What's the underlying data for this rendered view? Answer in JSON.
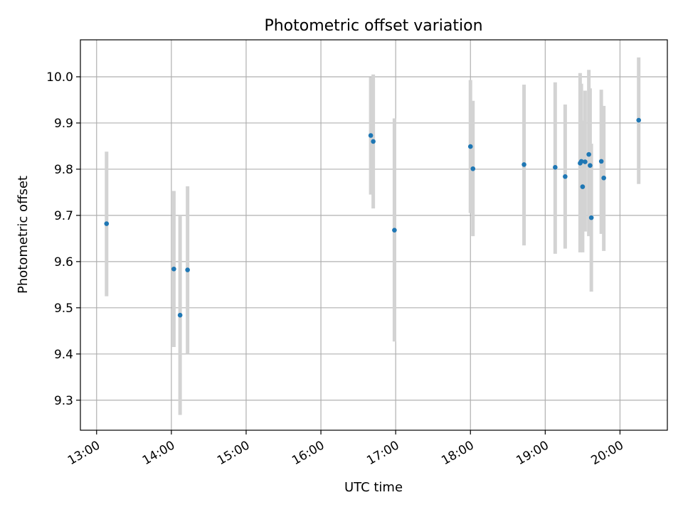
{
  "chart_data": {
    "type": "scatter",
    "title": "Photometric offset variation",
    "xlabel": "UTC time",
    "ylabel": "Photometric offset",
    "x_unit": "UTC time of day",
    "xlim": [
      "12:47",
      "20:38"
    ],
    "ylim": [
      9.235,
      10.08
    ],
    "x_ticks": [
      "13:00",
      "14:00",
      "15:00",
      "16:00",
      "17:00",
      "18:00",
      "19:00",
      "20:00"
    ],
    "y_ticks": [
      9.3,
      9.4,
      9.5,
      9.6,
      9.7,
      9.8,
      9.9,
      10.0
    ],
    "grid": true,
    "colors": {
      "marker": "#1f77b4",
      "error_bar": "#d3d3d3",
      "grid": "#b0b0b0"
    },
    "points": [
      {
        "x": "13:08",
        "y": 9.682,
        "ylow": 9.525,
        "yhigh": 9.838
      },
      {
        "x": "14:02",
        "y": 9.584,
        "ylow": 9.415,
        "yhigh": 9.753
      },
      {
        "x": "14:07",
        "y": 9.484,
        "ylow": 9.268,
        "yhigh": 9.7
      },
      {
        "x": "14:13",
        "y": 9.582,
        "ylow": 9.4,
        "yhigh": 9.763
      },
      {
        "x": "16:40",
        "y": 9.873,
        "ylow": 9.745,
        "yhigh": 9.999
      },
      {
        "x": "16:42",
        "y": 9.86,
        "ylow": 9.715,
        "yhigh": 10.005
      },
      {
        "x": "16:59",
        "y": 9.668,
        "ylow": 9.427,
        "yhigh": 9.91
      },
      {
        "x": "18:00",
        "y": 9.849,
        "ylow": 9.705,
        "yhigh": 9.993
      },
      {
        "x": "18:02",
        "y": 9.801,
        "ylow": 9.655,
        "yhigh": 9.948
      },
      {
        "x": "18:43",
        "y": 9.81,
        "ylow": 9.635,
        "yhigh": 9.983
      },
      {
        "x": "19:08",
        "y": 9.804,
        "ylow": 9.617,
        "yhigh": 9.988
      },
      {
        "x": "19:16",
        "y": 9.784,
        "ylow": 9.628,
        "yhigh": 9.94
      },
      {
        "x": "19:28",
        "y": 9.813,
        "ylow": 9.62,
        "yhigh": 10.008
      },
      {
        "x": "19:29",
        "y": 9.817,
        "ylow": 9.65,
        "yhigh": 9.985
      },
      {
        "x": "19:30",
        "y": 9.762,
        "ylow": 9.62,
        "yhigh": 9.905
      },
      {
        "x": "19:32",
        "y": 9.816,
        "ylow": 9.665,
        "yhigh": 9.97
      },
      {
        "x": "19:35",
        "y": 9.832,
        "ylow": 9.655,
        "yhigh": 10.015
      },
      {
        "x": "19:36",
        "y": 9.808,
        "ylow": 9.66,
        "yhigh": 9.975
      },
      {
        "x": "19:37",
        "y": 9.695,
        "ylow": 9.535,
        "yhigh": 9.855
      },
      {
        "x": "19:45",
        "y": 9.817,
        "ylow": 9.66,
        "yhigh": 9.972
      },
      {
        "x": "19:47",
        "y": 9.781,
        "ylow": 9.623,
        "yhigh": 9.937
      },
      {
        "x": "20:15",
        "y": 9.906,
        "ylow": 9.768,
        "yhigh": 10.042
      }
    ]
  }
}
